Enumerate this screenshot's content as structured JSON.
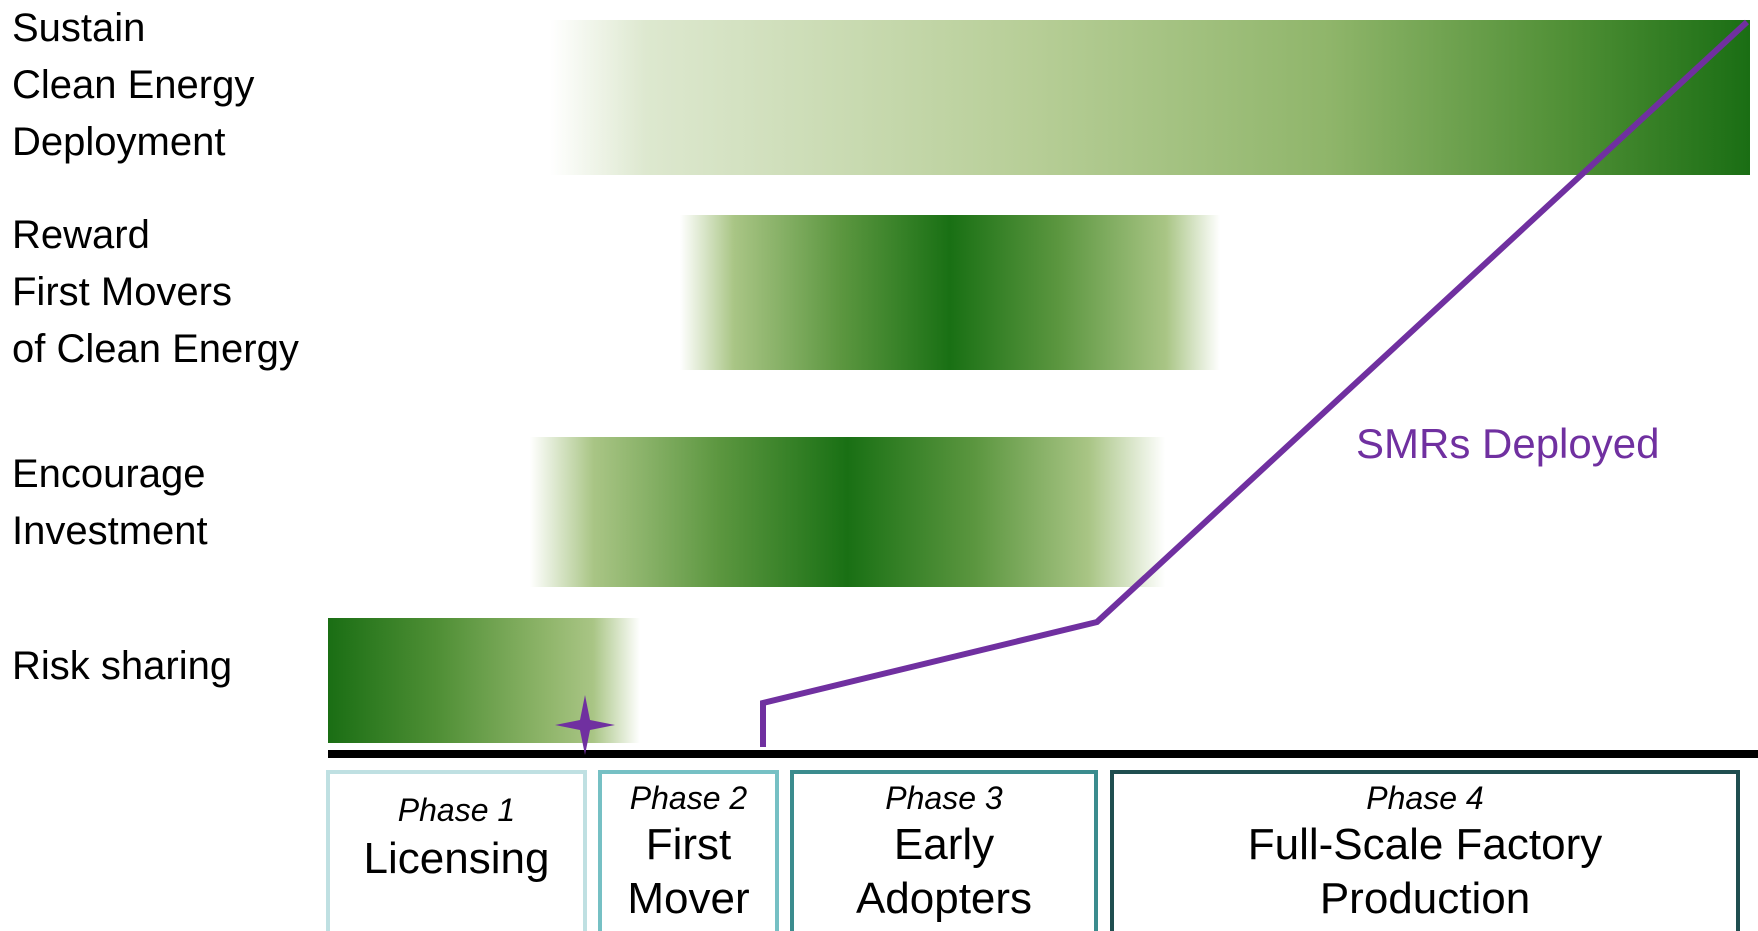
{
  "rows": {
    "sustain": [
      "Sustain",
      "Clean Energy",
      "Deployment"
    ],
    "reward": [
      "Reward",
      "First Movers",
      "of Clean Energy"
    ],
    "invest": [
      "Encourage",
      "Investment"
    ],
    "risk": [
      "Risk sharing"
    ]
  },
  "curve": {
    "label": "SMRs Deployed",
    "color": "#7030a0"
  },
  "phases": [
    {
      "num": "Phase 1",
      "name": [
        "Licensing"
      ]
    },
    {
      "num": "Phase 2",
      "name": [
        "First",
        "Mover"
      ]
    },
    {
      "num": "Phase 3",
      "name": [
        "Early",
        "Adopters"
      ]
    },
    {
      "num": "Phase 4",
      "name": [
        "Full-Scale Factory",
        "Production"
      ]
    }
  ],
  "colors": {
    "bar_dark_green": "#1a6e14",
    "phase_1_border": "#bfe0e2",
    "phase_2_border": "#76c0c4",
    "phase_3_border": "#3b8c8e",
    "phase_4_border": "#1f4e50"
  },
  "icons": {
    "marker": "four-point-star-icon"
  }
}
